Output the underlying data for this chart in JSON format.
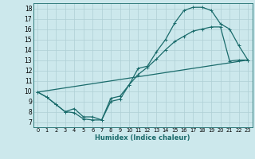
{
  "title": "",
  "xlabel": "Humidex (Indice chaleur)",
  "ylabel": "",
  "bg_color": "#cce8ec",
  "line_color": "#1a6b6b",
  "grid_color": "#aecfd4",
  "xlim": [
    -0.5,
    23.5
  ],
  "ylim": [
    6.5,
    18.5
  ],
  "xticks": [
    0,
    1,
    2,
    3,
    4,
    5,
    6,
    7,
    8,
    9,
    10,
    11,
    12,
    13,
    14,
    15,
    16,
    17,
    18,
    19,
    20,
    21,
    22,
    23
  ],
  "yticks": [
    7,
    8,
    9,
    10,
    11,
    12,
    13,
    14,
    15,
    16,
    17,
    18
  ],
  "line1_x": [
    0,
    1,
    2,
    3,
    4,
    5,
    6,
    7,
    8,
    9,
    10,
    11,
    12,
    13,
    14,
    15,
    16,
    17,
    18,
    19,
    20,
    21,
    22,
    23
  ],
  "line1_y": [
    9.9,
    9.4,
    8.7,
    8.0,
    7.9,
    7.3,
    7.2,
    7.2,
    9.3,
    9.5,
    10.6,
    12.2,
    12.4,
    13.8,
    15.0,
    16.6,
    17.8,
    18.1,
    18.1,
    17.8,
    16.5,
    16.0,
    14.4,
    13.0
  ],
  "line2_x": [
    0,
    1,
    2,
    3,
    4,
    5,
    6,
    7,
    8,
    9,
    10,
    11,
    12,
    13,
    14,
    15,
    16,
    17,
    18,
    19,
    20,
    21,
    22,
    23
  ],
  "line2_y": [
    9.9,
    9.4,
    8.7,
    8.0,
    8.3,
    7.5,
    7.5,
    7.2,
    9.0,
    9.2,
    10.6,
    11.6,
    12.3,
    13.1,
    14.0,
    14.8,
    15.3,
    15.8,
    16.0,
    16.2,
    16.2,
    12.9,
    13.0,
    13.0
  ],
  "line3_x": [
    0,
    23
  ],
  "line3_y": [
    9.9,
    13.0
  ]
}
